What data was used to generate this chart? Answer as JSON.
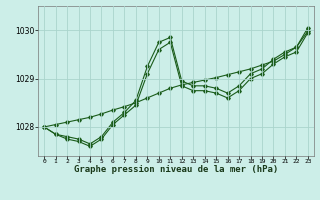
{
  "xlabel": "Graphe pression niveau de la mer (hPa)",
  "bg_color": "#cceee8",
  "grid_color": "#aad4cc",
  "line_color": "#1a5c1a",
  "x_ticks": [
    0,
    1,
    2,
    3,
    4,
    5,
    6,
    7,
    8,
    9,
    10,
    11,
    12,
    13,
    14,
    15,
    16,
    17,
    18,
    19,
    20,
    21,
    22,
    23
  ],
  "y_ticks": [
    1028,
    1029,
    1030
  ],
  "ylim": [
    1027.4,
    1030.5
  ],
  "xlim": [
    -0.5,
    23.5
  ],
  "line1_y": [
    1028.0,
    1027.85,
    1027.8,
    1027.75,
    1027.65,
    1027.8,
    1028.1,
    1028.3,
    1028.55,
    1029.25,
    1029.75,
    1029.85,
    1028.95,
    1028.85,
    1028.85,
    1028.8,
    1028.7,
    1028.85,
    1029.1,
    1029.2,
    1029.4,
    1029.55,
    1029.65,
    1030.05
  ],
  "line2_y": [
    1028.0,
    1027.85,
    1027.75,
    1027.7,
    1027.6,
    1027.75,
    1028.05,
    1028.25,
    1028.45,
    1029.1,
    1029.6,
    1029.75,
    1028.85,
    1028.75,
    1028.75,
    1028.7,
    1028.6,
    1028.75,
    1029.0,
    1029.1,
    1029.3,
    1029.45,
    1029.55,
    1029.95
  ],
  "line3_y": [
    1028.0,
    1028.05,
    1028.1,
    1028.15,
    1028.2,
    1028.27,
    1028.35,
    1028.42,
    1028.5,
    1028.6,
    1028.7,
    1028.8,
    1028.87,
    1028.92,
    1028.97,
    1029.02,
    1029.08,
    1029.14,
    1029.2,
    1029.28,
    1029.36,
    1029.5,
    1029.65,
    1029.98
  ]
}
